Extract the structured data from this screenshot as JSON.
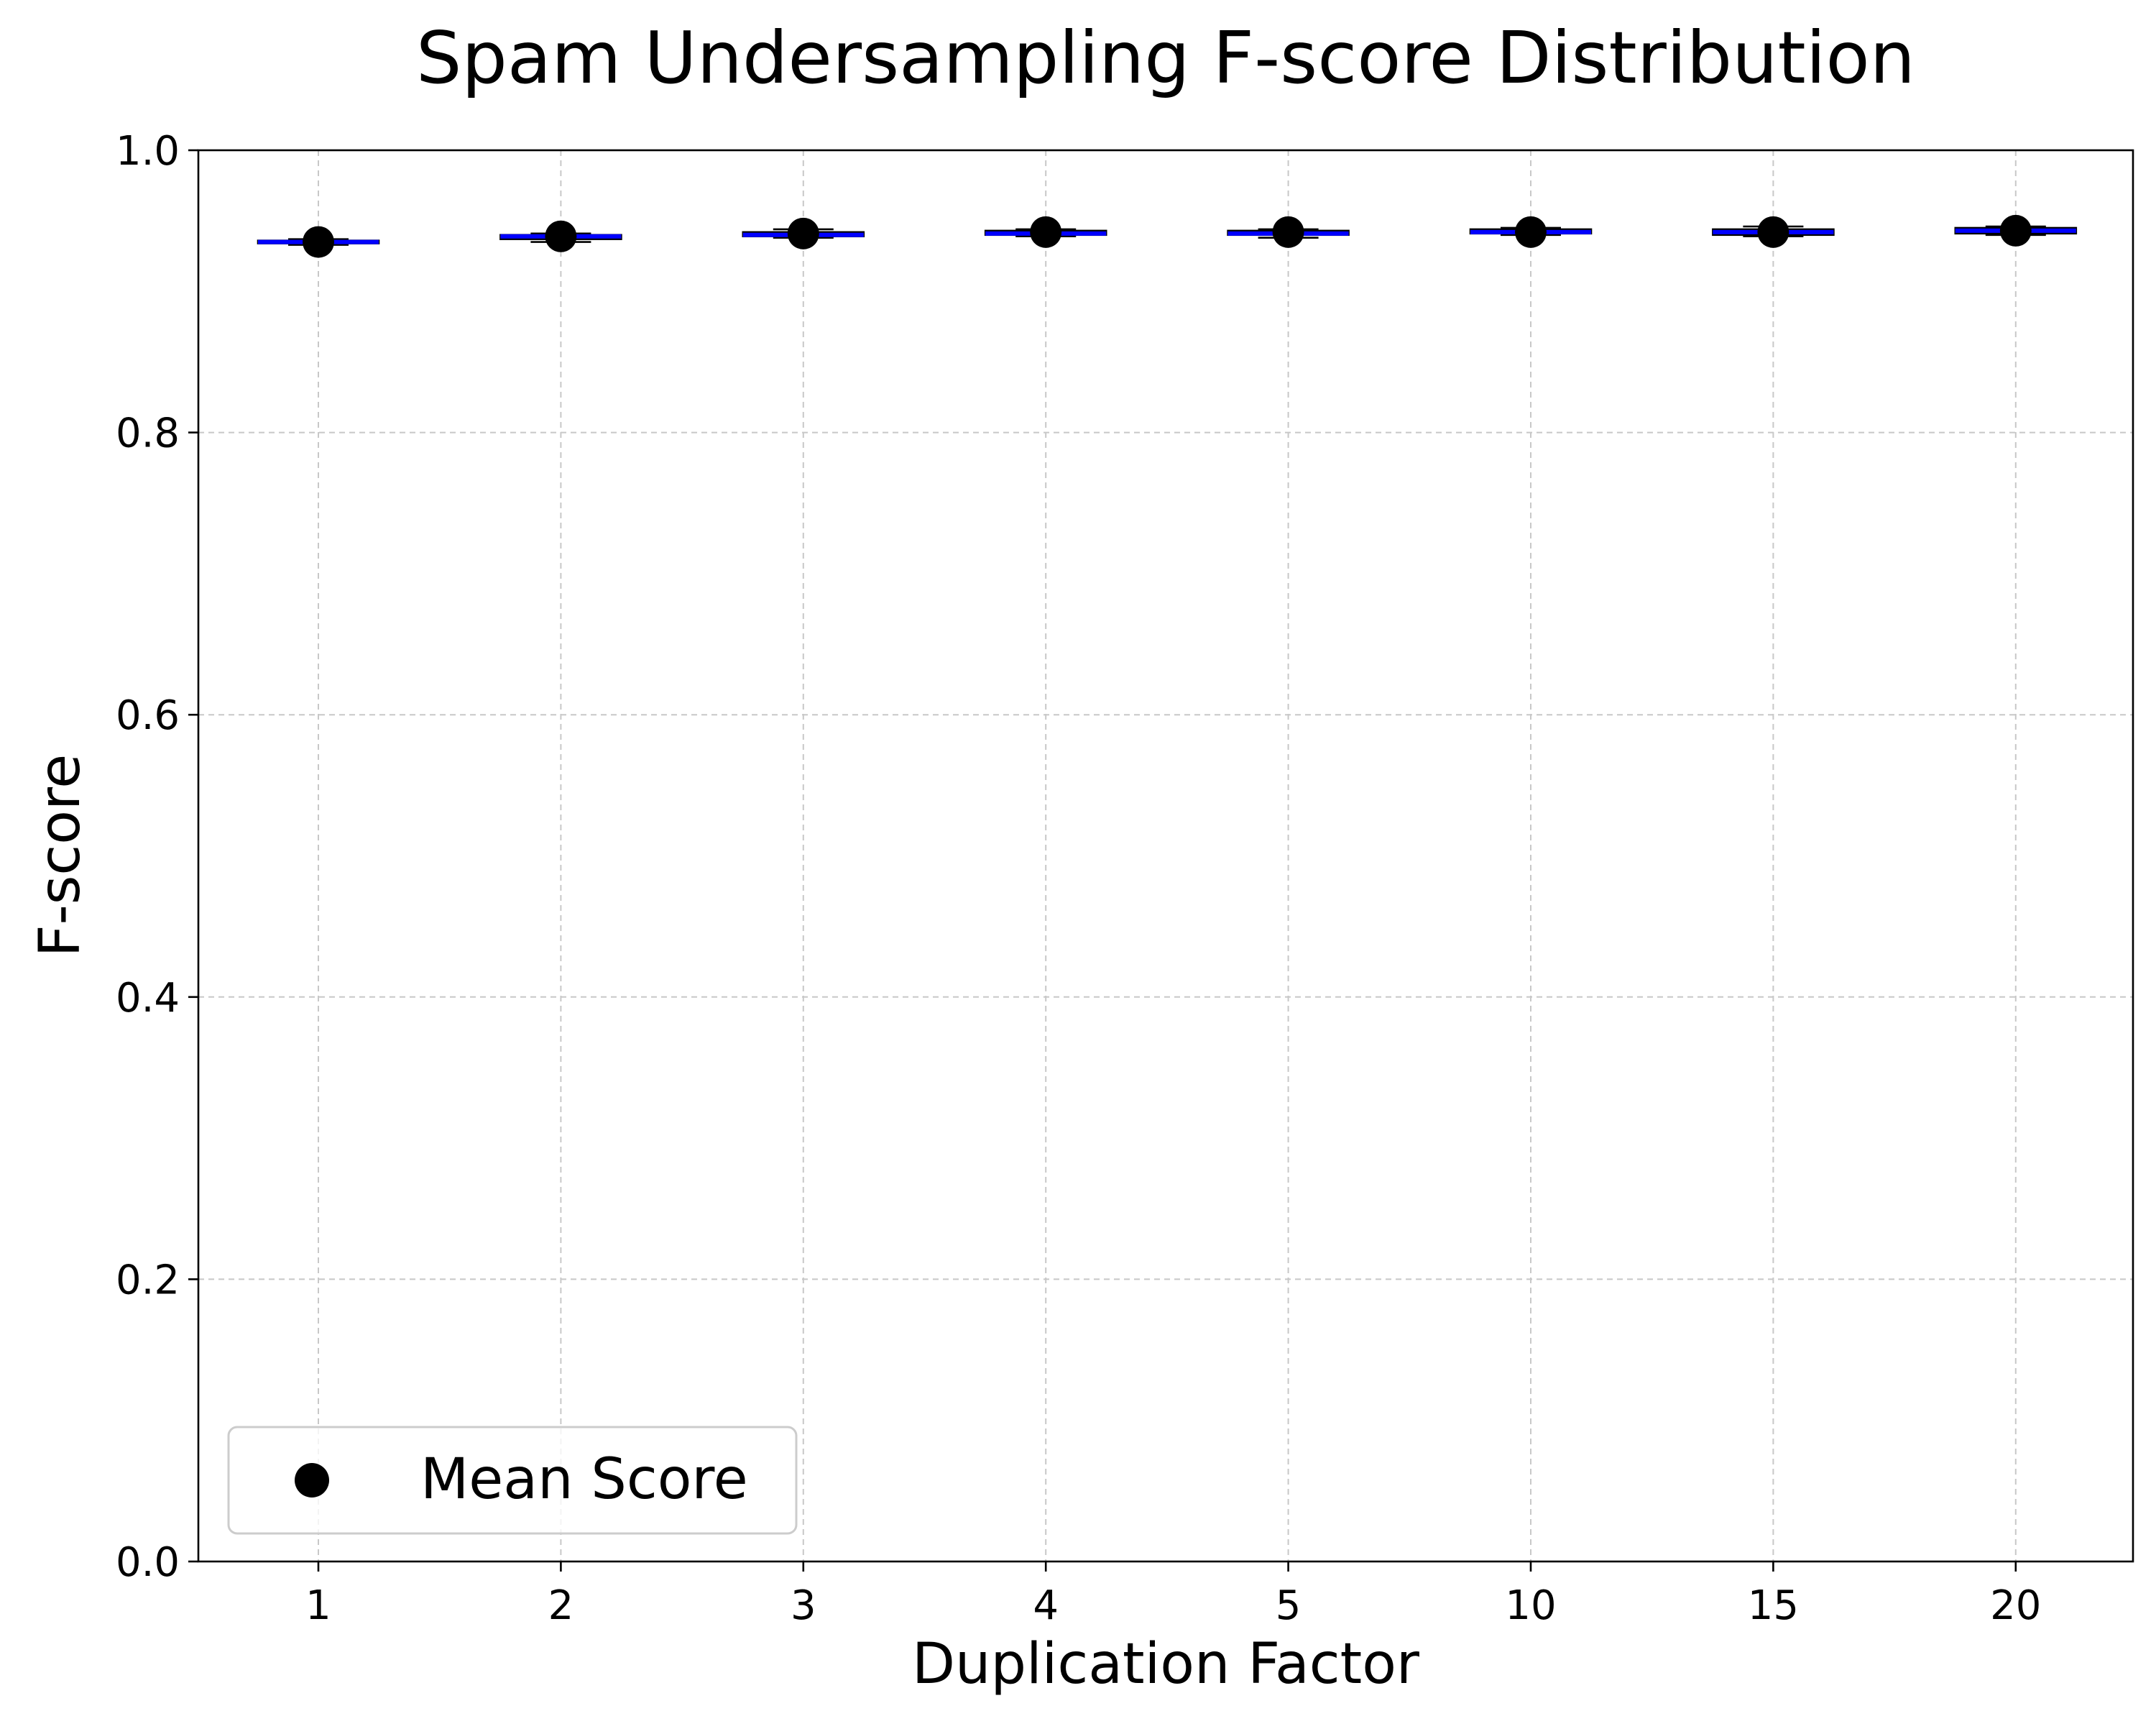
{
  "chart_data": {
    "type": "box",
    "title": "Spam Undersampling F-score Distribution",
    "xlabel": "Duplication Factor",
    "ylabel": "F-score",
    "categories": [
      "1",
      "2",
      "3",
      "4",
      "5",
      "10",
      "15",
      "20"
    ],
    "ylim": [
      0,
      1.0
    ],
    "yticks": [
      0.0,
      0.2,
      0.4,
      0.6,
      0.8,
      1.0
    ],
    "ytick_labels": [
      "0.0",
      "0.2",
      "0.4",
      "0.6",
      "0.8",
      "1.0"
    ],
    "grid": true,
    "boxes": [
      {
        "category": "1",
        "whisker_low": 0.933,
        "q1": 0.934,
        "median": 0.935,
        "q3": 0.936,
        "whisker_high": 0.937,
        "mean": 0.935
      },
      {
        "category": "2",
        "whisker_low": 0.935,
        "q1": 0.937,
        "median": 0.939,
        "q3": 0.94,
        "whisker_high": 0.941,
        "mean": 0.939
      },
      {
        "category": "3",
        "whisker_low": 0.938,
        "q1": 0.939,
        "median": 0.94,
        "q3": 0.942,
        "whisker_high": 0.944,
        "mean": 0.941
      },
      {
        "category": "4",
        "whisker_low": 0.939,
        "q1": 0.94,
        "median": 0.941,
        "q3": 0.943,
        "whisker_high": 0.944,
        "mean": 0.942
      },
      {
        "category": "5",
        "whisker_low": 0.938,
        "q1": 0.94,
        "median": 0.941,
        "q3": 0.943,
        "whisker_high": 0.944,
        "mean": 0.942
      },
      {
        "category": "10",
        "whisker_low": 0.94,
        "q1": 0.941,
        "median": 0.942,
        "q3": 0.944,
        "whisker_high": 0.945,
        "mean": 0.942
      },
      {
        "category": "15",
        "whisker_low": 0.939,
        "q1": 0.94,
        "median": 0.942,
        "q3": 0.944,
        "whisker_high": 0.946,
        "mean": 0.942
      },
      {
        "category": "20",
        "whisker_low": 0.94,
        "q1": 0.941,
        "median": 0.943,
        "q3": 0.945,
        "whisker_high": 0.946,
        "mean": 0.943
      }
    ],
    "legend": {
      "placement": "lower-left",
      "entries": [
        {
          "label": "Mean Score",
          "marker": "circle",
          "color": "#000000"
        }
      ]
    },
    "colors": {
      "median_line": "#0000ff",
      "box_edge": "#000000",
      "mean_marker": "#000000",
      "grid": "#c8c8c8"
    }
  }
}
